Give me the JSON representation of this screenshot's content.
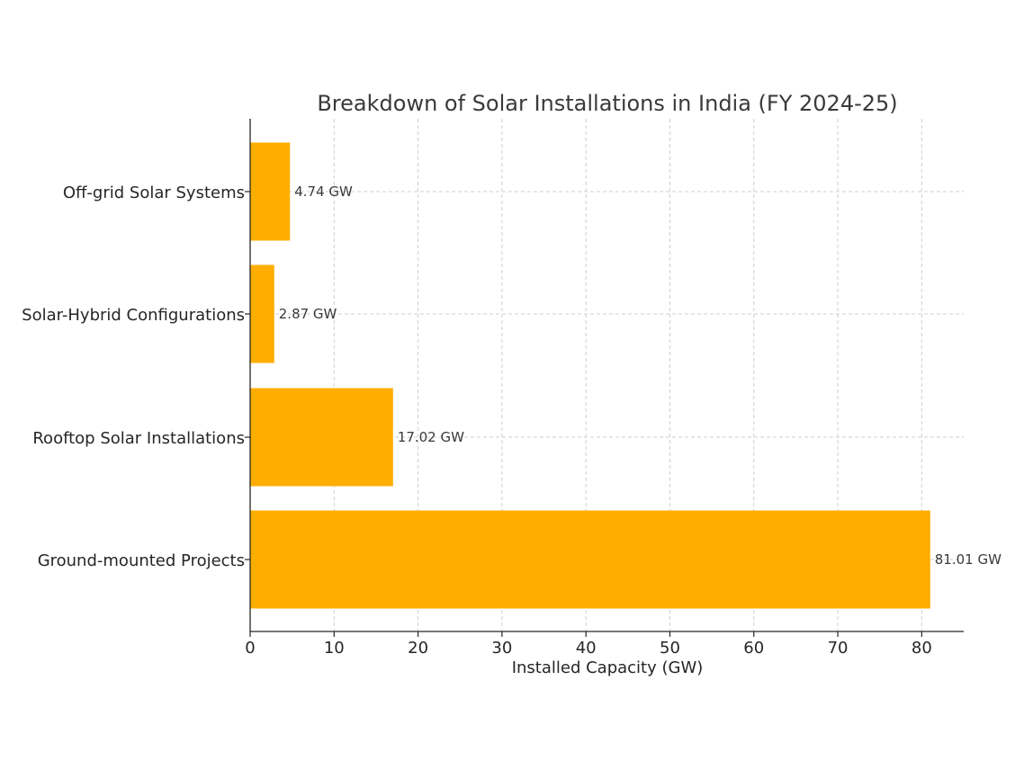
{
  "chart_data": {
    "type": "bar",
    "orientation": "horizontal",
    "title": "Breakdown of Solar Installations in India (FY 2024-25)",
    "xlabel": "Installed Capacity (GW)",
    "ylabel": "",
    "categories": [
      "Off-grid Solar Systems",
      "Solar-Hybrid Configurations",
      "Rooftop Solar Installations",
      "Ground-mounted Projects"
    ],
    "values": [
      4.74,
      2.87,
      17.02,
      81.01
    ],
    "data_labels": [
      "4.74 GW",
      "2.87 GW",
      "17.02 GW",
      "81.01 GW"
    ],
    "xlim": [
      0,
      85
    ],
    "xticks": [
      0,
      10,
      20,
      30,
      40,
      50,
      60,
      70,
      80
    ],
    "grid": true,
    "bar_color": "#ffad00"
  }
}
